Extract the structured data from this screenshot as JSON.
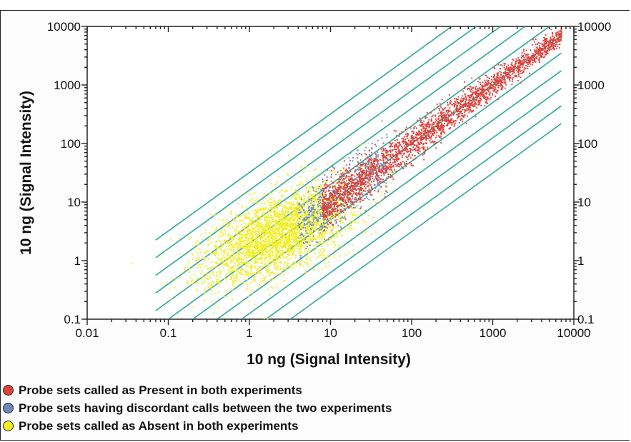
{
  "chart_data": {
    "type": "scatter",
    "x_scale": "log",
    "y_scale": "log",
    "xlim": [
      0.01,
      10000
    ],
    "ylim": [
      0.1,
      10000
    ],
    "xlabel": "10 ng (Signal Intensity)",
    "ylabel": "10 ng (Signal Intensity)",
    "x_tick_labels": [
      "0.01",
      "0.1",
      "1",
      "10",
      "100",
      "1000",
      "10000"
    ],
    "y_tick_labels": [
      "0.1",
      "1",
      "10",
      "100",
      "1000",
      "10000"
    ],
    "y_tick_values": [
      0.1,
      1,
      10,
      100,
      1000,
      10000
    ],
    "x_tick_values": [
      0.01,
      0.1,
      1,
      10,
      100,
      1000,
      10000
    ],
    "grid": false,
    "fold_change_lines": {
      "color": "#2aa89a",
      "ratios": [
        0.03125,
        0.0625,
        0.125,
        0.25,
        0.5,
        1,
        2,
        4,
        8,
        16,
        32
      ],
      "x_range": [
        0.07,
        7000
      ]
    },
    "series": [
      {
        "name": "Probe sets called as Present in both experiments",
        "color": "#e0403a",
        "x_range_log10": [
          0.9,
          3.85
        ],
        "y_over_x_spread_log10": 0.12,
        "approx_points": 2600
      },
      {
        "name": "Probe sets having discordant calls between the two experiments",
        "color": "#6b8ab8",
        "x_range_log10": [
          0.6,
          1.7
        ],
        "y_over_x_spread_log10": 0.25,
        "approx_points": 600
      },
      {
        "name": "Probe sets called as Absent in both experiments",
        "color": "#f2ef1e",
        "x_center_log10": 0.35,
        "y_center_log10": 0.45,
        "x_spread_log10": 0.45,
        "y_spread_log10": 0.42,
        "approx_points": 3200
      }
    ],
    "legend_position": "bottom-left"
  },
  "legend": {
    "items": [
      {
        "label": "Probe sets called as Present in both experiments",
        "color": "#e0403a"
      },
      {
        "label": "Probe sets having discordant calls between the two experiments",
        "color": "#6b8ab8"
      },
      {
        "label": "Probe sets called as Absent in both experiments",
        "color": "#f2ef1e"
      }
    ]
  }
}
